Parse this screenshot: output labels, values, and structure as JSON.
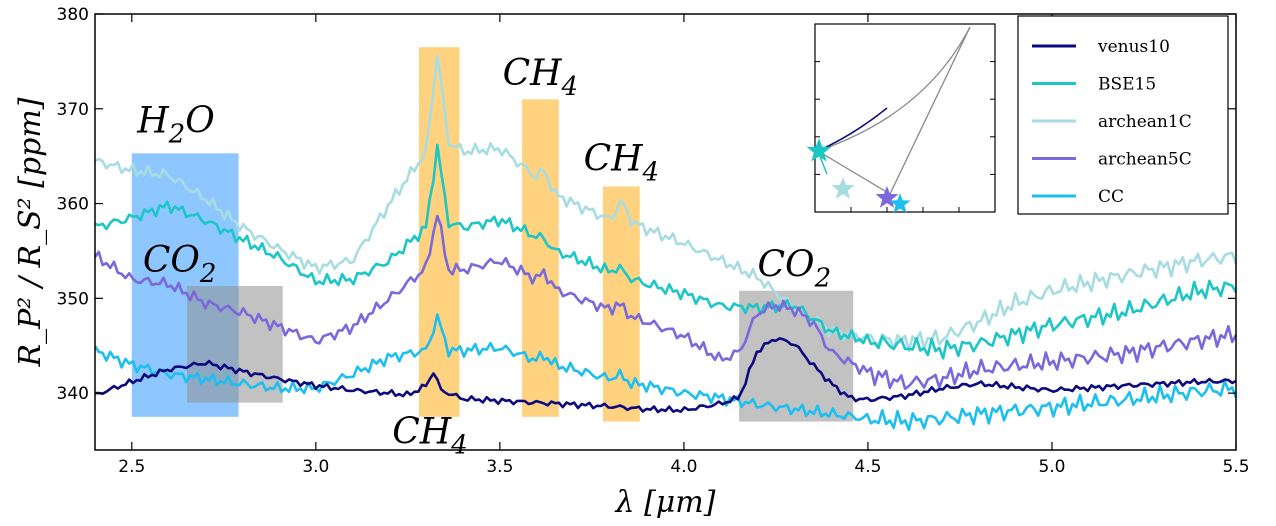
{
  "chart_data": {
    "type": "line",
    "xlabel": "λ [μm]",
    "ylabel": "R_P² / R_S² [ppm]",
    "xlim": [
      2.4,
      5.5
    ],
    "ylim": [
      334,
      380
    ],
    "xticks": [
      2.5,
      3.0,
      3.5,
      4.0,
      4.5,
      5.0,
      5.5
    ],
    "yticks": [
      340,
      350,
      360,
      370,
      380
    ],
    "xtick_labels": [
      "2.5",
      "3.0",
      "3.5",
      "4.0",
      "4.5",
      "5.0",
      "5.5"
    ],
    "ytick_labels": [
      "340",
      "350",
      "360",
      "370",
      "380"
    ],
    "legend_position": "top-right",
    "series": [
      {
        "name": "venus10",
        "color": "#0d0a80",
        "x": [
          2.4,
          2.5,
          2.6,
          2.7,
          2.8,
          2.9,
          3.0,
          3.1,
          3.2,
          3.25,
          3.3,
          3.32,
          3.34,
          3.4,
          3.5,
          3.6,
          3.7,
          3.8,
          3.9,
          4.0,
          4.1,
          4.15,
          4.2,
          4.25,
          4.3,
          4.35,
          4.4,
          4.45,
          4.5,
          4.6,
          4.7,
          4.8,
          5.0,
          5.2,
          5.4,
          5.5
        ],
        "y": [
          339.8,
          341.2,
          342.5,
          343.2,
          342.3,
          341.5,
          340.8,
          340.3,
          340.0,
          339.8,
          340.8,
          342.3,
          340.3,
          339.4,
          339.2,
          339.0,
          338.8,
          338.6,
          338.3,
          338.2,
          338.9,
          339.5,
          344.5,
          345.8,
          345.2,
          343.0,
          341.0,
          339.5,
          339.3,
          339.7,
          340.5,
          341.0,
          340.3,
          340.8,
          341.2,
          341.3
        ]
      },
      {
        "name": "BSE15",
        "color": "#1cc6c6",
        "x": [
          2.4,
          2.5,
          2.6,
          2.7,
          2.8,
          2.9,
          3.0,
          3.1,
          3.2,
          3.3,
          3.33,
          3.36,
          3.4,
          3.5,
          3.6,
          3.62,
          3.65,
          3.7,
          3.8,
          3.82,
          3.86,
          3.9,
          4.0,
          4.1,
          4.2,
          4.3,
          4.4,
          4.5,
          4.6,
          4.7,
          4.8,
          4.9,
          5.0,
          5.2,
          5.4,
          5.5
        ],
        "y": [
          357.5,
          358.5,
          359.8,
          358.2,
          356.2,
          354.3,
          351.8,
          352.0,
          354.0,
          357.5,
          366.0,
          358.0,
          357.5,
          358.3,
          356.5,
          356.3,
          355.0,
          354.3,
          352.8,
          353.3,
          352.0,
          351.5,
          350.5,
          349.2,
          349.0,
          349.3,
          346.5,
          345.5,
          345.0,
          344.6,
          345.2,
          346.2,
          347.2,
          348.6,
          350.8,
          351.3
        ]
      },
      {
        "name": "archean1C",
        "color": "#a7dde2",
        "x": [
          2.4,
          2.5,
          2.6,
          2.7,
          2.8,
          2.9,
          3.0,
          3.1,
          3.2,
          3.3,
          3.33,
          3.36,
          3.4,
          3.5,
          3.6,
          3.62,
          3.65,
          3.7,
          3.8,
          3.83,
          3.86,
          3.9,
          4.0,
          4.1,
          4.2,
          4.3,
          4.4,
          4.5,
          4.6,
          4.7,
          4.8,
          4.9,
          5.0,
          5.2,
          5.4,
          5.5
        ],
        "y": [
          364.5,
          363.5,
          363.0,
          360.5,
          357.5,
          355.2,
          353.2,
          354.0,
          360.0,
          365.5,
          375.8,
          366.5,
          365.5,
          365.8,
          362.8,
          363.5,
          361.0,
          360.0,
          358.3,
          360.3,
          358.0,
          357.3,
          355.8,
          354.0,
          352.2,
          349.0,
          346.5,
          345.8,
          345.5,
          345.8,
          347.5,
          349.5,
          350.8,
          352.5,
          354.0,
          354.5
        ]
      },
      {
        "name": "archean5C",
        "color": "#7b68dc",
        "x": [
          2.4,
          2.5,
          2.6,
          2.7,
          2.8,
          2.9,
          3.0,
          3.1,
          3.2,
          3.3,
          3.33,
          3.36,
          3.4,
          3.5,
          3.6,
          3.62,
          3.65,
          3.7,
          3.8,
          3.82,
          3.86,
          3.9,
          4.0,
          4.1,
          4.15,
          4.2,
          4.25,
          4.3,
          4.35,
          4.4,
          4.5,
          4.6,
          4.7,
          4.8,
          5.0,
          5.2,
          5.4,
          5.5
        ],
        "y": [
          354.5,
          352.0,
          351.5,
          349.5,
          348.5,
          347.0,
          345.5,
          347.0,
          350.0,
          353.2,
          359.0,
          353.0,
          353.0,
          354.0,
          352.0,
          352.8,
          351.0,
          350.2,
          348.8,
          349.5,
          348.0,
          347.5,
          346.0,
          343.5,
          344.3,
          348.5,
          349.3,
          348.8,
          347.5,
          344.3,
          342.2,
          341.0,
          341.5,
          342.5,
          343.3,
          344.2,
          345.6,
          346.2
        ]
      },
      {
        "name": "CC",
        "color": "#1cbff0",
        "x": [
          2.4,
          2.5,
          2.6,
          2.7,
          2.8,
          2.9,
          3.0,
          3.1,
          3.2,
          3.3,
          3.33,
          3.36,
          3.4,
          3.5,
          3.6,
          3.62,
          3.65,
          3.7,
          3.8,
          3.82,
          3.86,
          3.9,
          4.0,
          4.1,
          4.2,
          4.3,
          4.4,
          4.5,
          4.6,
          4.7,
          4.8,
          5.0,
          5.2,
          5.4,
          5.5
        ],
        "y": [
          344.5,
          343.0,
          342.0,
          341.5,
          341.0,
          340.5,
          340.5,
          342.0,
          343.8,
          344.5,
          348.0,
          344.5,
          344.5,
          344.8,
          343.5,
          344.0,
          343.0,
          342.5,
          341.5,
          342.0,
          341.0,
          340.8,
          340.0,
          339.5,
          338.8,
          338.3,
          337.8,
          337.3,
          337.0,
          337.3,
          337.8,
          338.5,
          339.3,
          340.2,
          340.5
        ]
      }
    ],
    "bands": [
      {
        "molecule": "H2O",
        "x0": 2.5,
        "x1": 2.79,
        "y0": 337.5,
        "y1": 365.3,
        "color": "#1e90ff"
      },
      {
        "molecule": "CO2",
        "x0": 2.65,
        "x1": 2.91,
        "y0": 339.0,
        "y1": 351.3,
        "color": "#909090"
      },
      {
        "molecule": "CH4",
        "x0": 3.28,
        "x1": 3.39,
        "y0": 337.5,
        "y1": 376.5,
        "color": "#ffa500"
      },
      {
        "molecule": "CH4",
        "x0": 3.56,
        "x1": 3.66,
        "y0": 337.5,
        "y1": 371.0,
        "color": "#ffa500"
      },
      {
        "molecule": "CH4",
        "x0": 3.78,
        "x1": 3.88,
        "y0": 337.0,
        "y1": 361.8,
        "color": "#ffa500"
      },
      {
        "molecule": "CO2",
        "x0": 4.15,
        "x1": 4.46,
        "y0": 337.0,
        "y1": 350.8,
        "color": "#909090"
      }
    ],
    "annotations": [
      {
        "base": "H",
        "sub": "2",
        "tail": "O",
        "x": 2.62,
        "y": 367.5
      },
      {
        "base": "CO",
        "sub": "2",
        "tail": "",
        "x": 2.63,
        "y": 352.8
      },
      {
        "base": "CH",
        "sub": "4",
        "tail": "",
        "x": 3.31,
        "y": 334.7
      },
      {
        "base": "CH",
        "sub": "4",
        "tail": "",
        "x": 3.61,
        "y": 372.5
      },
      {
        "base": "CH",
        "sub": "4",
        "tail": "",
        "x": 3.83,
        "y": 363.5
      },
      {
        "base": "CO",
        "sub": "2",
        "tail": "",
        "x": 4.3,
        "y": 352.3
      }
    ],
    "inset": {
      "description": "small triangle diagram with star markers",
      "stars": [
        {
          "name": "venus10",
          "color": "#0d0a80"
        },
        {
          "name": "BSE15",
          "color": "#1cc6c6"
        },
        {
          "name": "archean1C",
          "color": "#a7dde2"
        },
        {
          "name": "archean5C",
          "color": "#7b68dc"
        },
        {
          "name": "CC",
          "color": "#1cbff0"
        }
      ]
    }
  }
}
